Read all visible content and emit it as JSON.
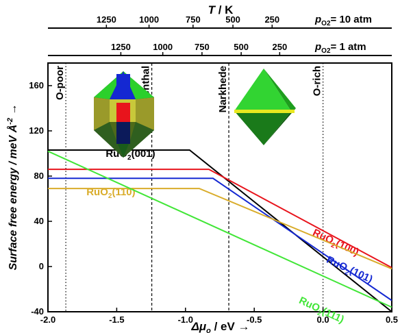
{
  "chart_data": {
    "type": "line",
    "xlabel_symbol": "Δμ",
    "xlabel_sub": "o",
    "xlabel_unit": " / eV →",
    "ylabel_text": "Surface free energy / meV Å",
    "ylabel_sup": "-2",
    "ylabel_arrow": " →",
    "xlim": [
      -2.0,
      0.5
    ],
    "ylim": [
      -40,
      180
    ],
    "x_ticks": [
      -2.0,
      -1.5,
      -1.0,
      -0.5,
      0.0,
      0.5
    ],
    "x_tick_labels": [
      "-2.0",
      "-1.5",
      "-1.0",
      "-0.5",
      "0.0",
      "0.5"
    ],
    "y_ticks": [
      -40,
      0,
      40,
      80,
      120,
      160
    ],
    "y_tick_labels": [
      "-40",
      "0",
      "40",
      "80",
      "120",
      "160"
    ],
    "top_axis_title": "T / K",
    "top_axes": [
      {
        "label_main": "p",
        "label_sub": "O2",
        "label_value": "= 10 atm",
        "ticks": [
          {
            "label": "1250",
            "x": -1.575
          },
          {
            "label": "1000",
            "x": -1.265
          },
          {
            "label": "750",
            "x": -0.945
          },
          {
            "label": "500",
            "x": -0.655
          },
          {
            "label": "250",
            "x": -0.37
          }
        ]
      },
      {
        "label_main": "p",
        "label_sub": "O2",
        "label_value": "= 1 atm",
        "ticks": [
          {
            "label": "1250",
            "x": -1.47
          },
          {
            "label": "1000",
            "x": -1.165
          },
          {
            "label": "750",
            "x": -0.88
          },
          {
            "label": "500",
            "x": -0.595
          },
          {
            "label": "250",
            "x": -0.315
          }
        ]
      }
    ],
    "vlines": [
      {
        "x": -1.87,
        "label": "O-poor",
        "style": "dotted"
      },
      {
        "x": -1.245,
        "label": "Rosenthal",
        "style": "dashed"
      },
      {
        "x": -0.685,
        "label": "Narkhede",
        "style": "dashed"
      },
      {
        "x": 0.0,
        "label": "O-rich",
        "style": "dotted"
      }
    ],
    "series": [
      {
        "name": "RuO2(001)",
        "base": "RuO",
        "sub": "2",
        "facet": "(001)",
        "color": "#000000",
        "points": [
          [
            -2.0,
            103
          ],
          [
            -0.97,
            103
          ],
          [
            0.5,
            -40
          ]
        ],
        "label_x": -1.58,
        "label_y": 97
      },
      {
        "name": "RuO2(100)",
        "base": "RuO",
        "sub": "2",
        "facet": "(100)",
        "color": "#e8141c",
        "points": [
          [
            -2.0,
            86
          ],
          [
            -0.83,
            86
          ],
          [
            0.5,
            -1
          ]
        ],
        "label_x": -0.08,
        "label_y": 28
      },
      {
        "name": "RuO2(101)",
        "base": "RuO",
        "sub": "2",
        "facet": "(101)",
        "color": "#1428d2",
        "points": [
          [
            -2.0,
            78
          ],
          [
            -0.8,
            78
          ],
          [
            0.5,
            -30
          ]
        ],
        "label_x": 0.02,
        "label_y": 4
      },
      {
        "name": "RuO2(110)",
        "base": "RuO",
        "sub": "2",
        "facet": "(110)",
        "color": "#d9ac2a",
        "points": [
          [
            -2.0,
            69
          ],
          [
            -0.9,
            69
          ],
          [
            0.5,
            -2
          ]
        ],
        "label_x": -1.72,
        "label_y": 63
      },
      {
        "name": "RuO2(111)",
        "base": "RuO",
        "sub": "2",
        "facet": "(111)",
        "color": "#41e637",
        "points": [
          [
            -2.0,
            102
          ],
          [
            0.5,
            -36
          ]
        ],
        "label_x": -0.18,
        "label_y": -32
      }
    ],
    "insets": [
      "crystal-shape-low-mu",
      "crystal-shape-high-mu"
    ]
  }
}
